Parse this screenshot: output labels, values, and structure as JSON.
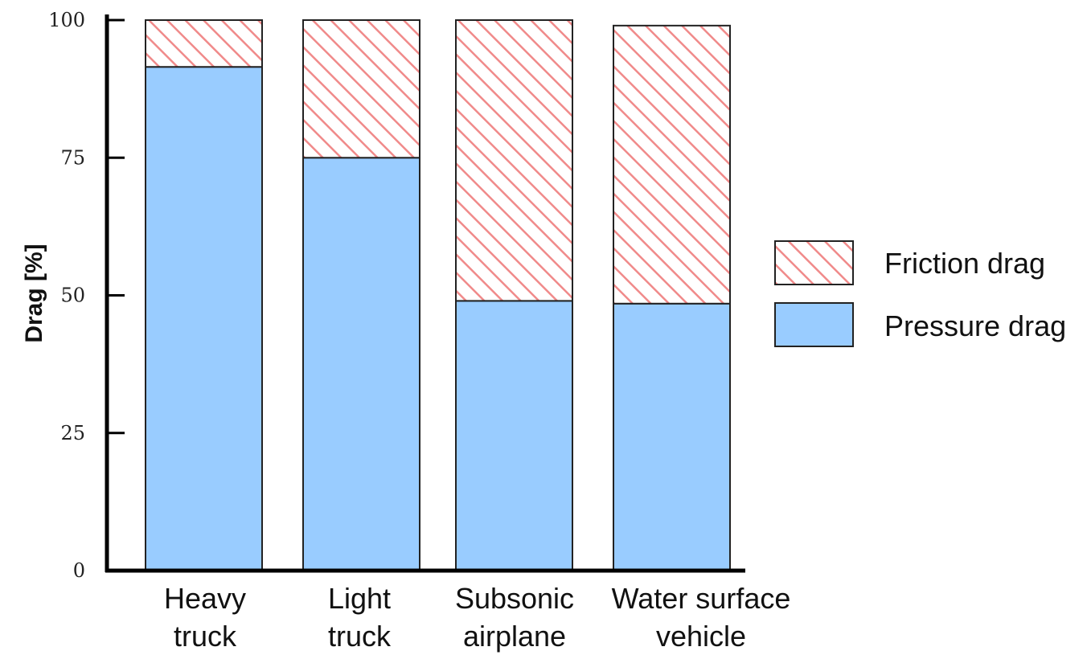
{
  "chart_data": {
    "type": "bar",
    "stacked": true,
    "categories": [
      [
        "Heavy",
        "truck"
      ],
      [
        "Light",
        "truck"
      ],
      [
        "Subsonic",
        "airplane"
      ],
      [
        "Water surface",
        "vehicle"
      ]
    ],
    "series": [
      {
        "name": "Pressure drag",
        "values": [
          91.5,
          75,
          49,
          48.5
        ],
        "color": "#99ccff",
        "pattern": "solid"
      },
      {
        "name": "Friction drag",
        "values": [
          8.5,
          25,
          51,
          50.5
        ],
        "color": "#f4a6a6",
        "pattern": "diagonal-hatch"
      }
    ],
    "ylabel": "Drag [%]",
    "xlabel": "",
    "title": "",
    "ylim": [
      0,
      100
    ],
    "yticks": [
      0,
      25,
      50,
      75,
      100
    ],
    "legend": {
      "placement": "right",
      "entries": [
        "Friction drag",
        "Pressure drag"
      ]
    },
    "grid": false
  }
}
